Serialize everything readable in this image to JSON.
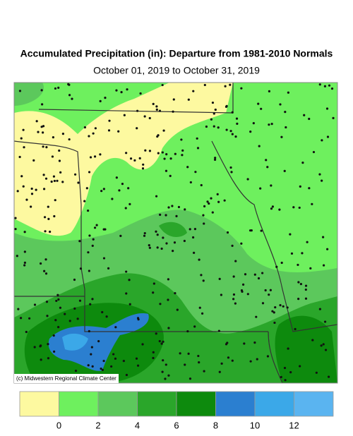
{
  "title": "Accumulated Precipitation (in): Departure from 1981-2010 Normals",
  "subtitle": "October 01, 2019 to October 31, 2019",
  "credit": "(c) Midwestern Regional Climate Center",
  "legend": {
    "colors": [
      "#fdf9a0",
      "#6ef05e",
      "#5cc85c",
      "#2aa62a",
      "#0d8a0d",
      "#2b7fd0",
      "#3ba8e8",
      "#5ab4f0"
    ],
    "ticks": [
      0,
      2,
      4,
      6,
      8,
      10,
      12
    ]
  }
}
